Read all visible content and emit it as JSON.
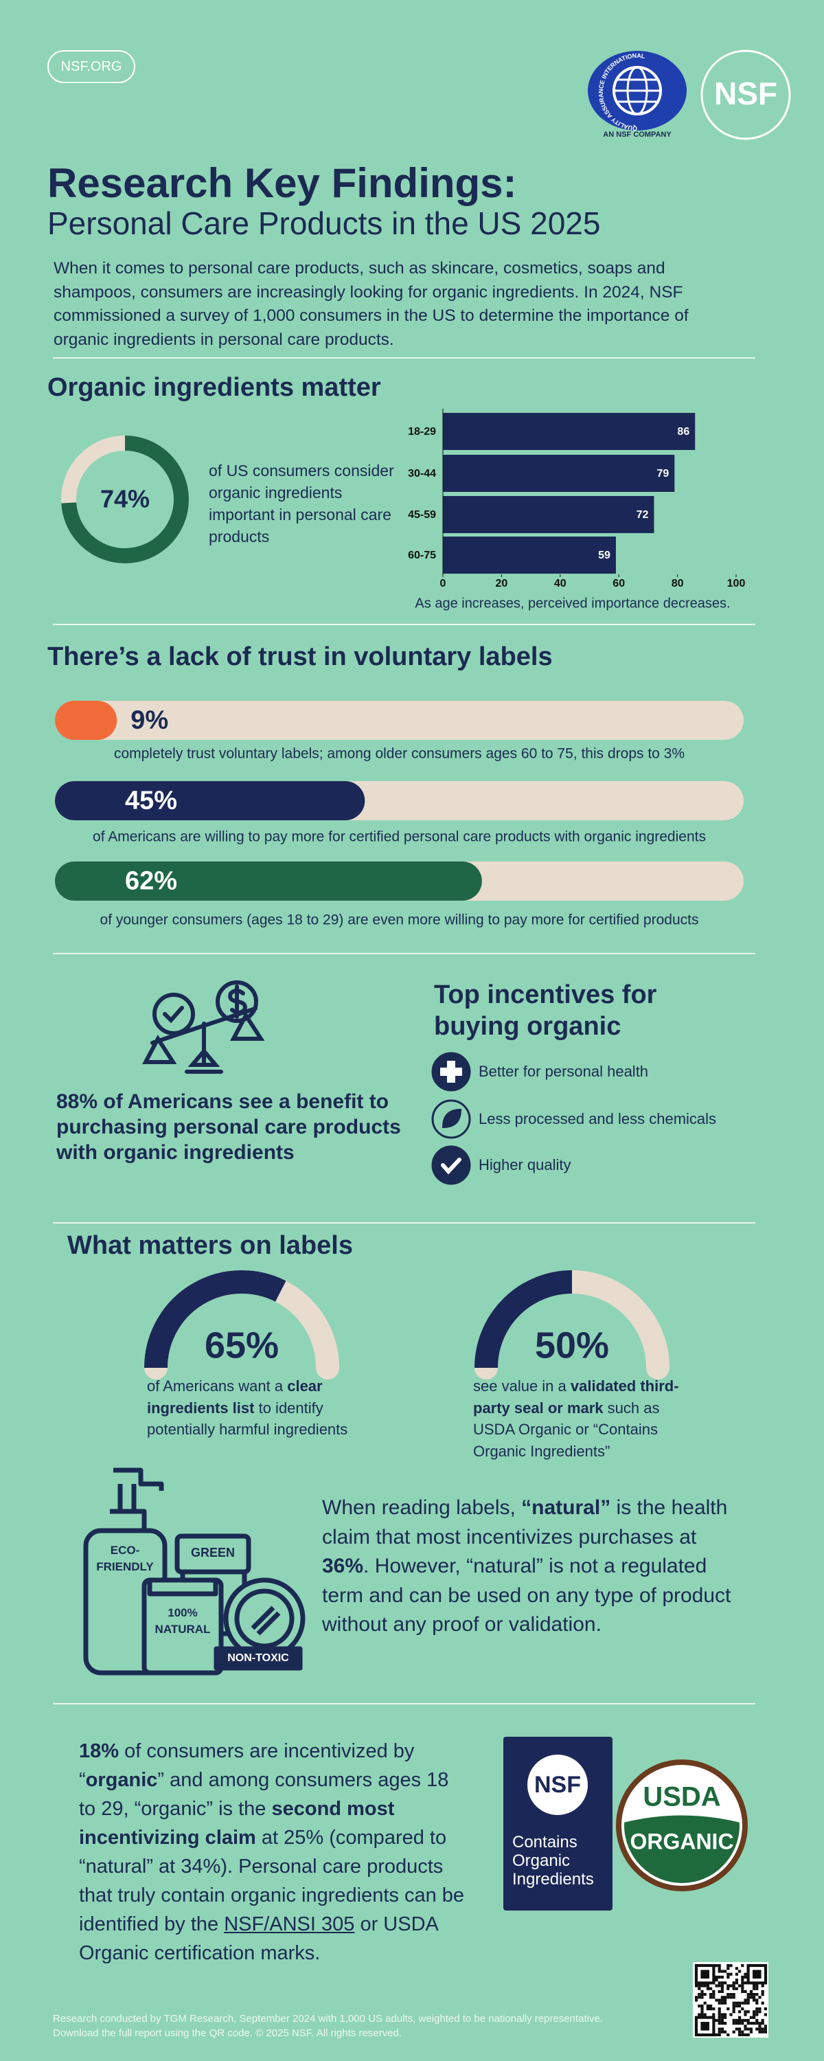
{
  "header": {
    "site_link": "NSF.ORG",
    "qa_logo": {
      "ring_text": "QUALITY ASSURANCE INTERNATIONAL",
      "caption": "AN NSF COMPANY"
    },
    "nsf_logo": "NSF",
    "title": "Research Key Findings:",
    "subtitle": "Personal Care Products in the US 2025",
    "intro": "When it comes to personal care products, such as skincare, cosmetics, soaps and shampoos, consumers are increasingly looking for organic ingredients. In 2024, NSF commissioned a survey of 1,000 consumers in the US to determine the importance of organic ingredients in personal care products."
  },
  "organic": {
    "heading": "Organic ingredients matter",
    "donut": {
      "value": 74,
      "label": "74%",
      "color": "#1e6646",
      "text": "of US consumers consider organic ingredients important in personal care products"
    },
    "age_chart": {
      "type": "bar",
      "categories": [
        "18-29",
        "30-44",
        "45-59",
        "60-75"
      ],
      "values": [
        86,
        79,
        72,
        59
      ],
      "color": "#1b2857",
      "xlim": [
        0,
        100
      ],
      "xticks": [
        0,
        20,
        40,
        60,
        80,
        100
      ],
      "caption": "As age increases, perceived importance decreases."
    }
  },
  "trust": {
    "heading": "There’s a lack of trust in voluntary labels",
    "track_color": "#e8dccf",
    "bars": [
      {
        "value": 9,
        "label": "9%",
        "color": "#f26b3a",
        "text": "completely trust voluntary labels; among older consumers ages 60 to 75, this drops to 3%"
      },
      {
        "value": 45,
        "label": "45%",
        "color": "#1b2857",
        "text": "of Americans are willing to pay more for certified personal care products with organic ingredients"
      },
      {
        "value": 62,
        "label": "62%",
        "color": "#1e6646",
        "text": "of younger consumers (ages 18 to 29) are even more willing to pay more for certified products"
      }
    ]
  },
  "benefit": {
    "text": "88% of Americans see a benefit to purchasing personal care products with organic ingredients"
  },
  "incentives": {
    "heading": "Top incentives for buying organic",
    "items": [
      "Better for personal health",
      "Less processed and less chemicals",
      "Higher quality"
    ]
  },
  "labels": {
    "heading": "What matters on labels",
    "track_color": "#e8dccf",
    "gauges": [
      {
        "value": 65,
        "label": "65%",
        "color": "#1b2857",
        "text": [
          "of Americans want a ",
          "clear ingredients list",
          " to identify potentially harmful ingredients"
        ]
      },
      {
        "value": 50,
        "label": "50%",
        "color": "#1b2857",
        "text": [
          "see value in a ",
          "validated third-party seal or mark",
          " such as USDA Organic or “Contains Organic Ingredients”"
        ]
      }
    ],
    "tags": [
      "ECO-FRIENDLY",
      "GREEN",
      "100% NATURAL",
      "NON-TOXIC"
    ],
    "natural": [
      "When reading labels, ",
      "“natural”",
      " is the health claim that most incentivizes purchases at ",
      "36%",
      ". However, “natural” is not a regulated term and can be used on any type of product without any proof or validation."
    ]
  },
  "organic_claim": {
    "text": [
      "18%",
      " of consumers are incentivized by “",
      "organic",
      "” and among consumers ages 18 to 29, “organic” is the ",
      "second most incentivizing claim",
      " at 25% (compared to “natural” at 34%). Personal care products that truly contain organic ingredients can be identified by the ",
      "NSF/ANSI 305",
      " or USDA Organic certification marks."
    ],
    "nsf_badge": {
      "logo": "NSF",
      "text": "Contains Organic Ingredients"
    },
    "usda_badge": {
      "top": "USDA",
      "bottom": "ORGANIC"
    }
  },
  "footer": [
    "Research conducted by TGM Research, September 2024 with 1,000 US adults, weighted to be nationally representative.",
    "Download the full report using the QR code. © 2025 NSF. All rights reserved."
  ]
}
